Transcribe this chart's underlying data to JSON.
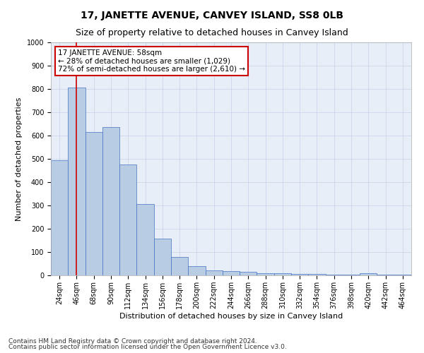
{
  "title": "17, JANETTE AVENUE, CANVEY ISLAND, SS8 0LB",
  "subtitle": "Size of property relative to detached houses in Canvey Island",
  "xlabel": "Distribution of detached houses by size in Canvey Island",
  "ylabel": "Number of detached properties",
  "footnote1": "Contains HM Land Registry data © Crown copyright and database right 2024.",
  "footnote2": "Contains public sector information licensed under the Open Government Licence v3.0.",
  "categories": [
    "24sqm",
    "46sqm",
    "68sqm",
    "90sqm",
    "112sqm",
    "134sqm",
    "156sqm",
    "178sqm",
    "200sqm",
    "222sqm",
    "244sqm",
    "266sqm",
    "288sqm",
    "310sqm",
    "332sqm",
    "354sqm",
    "376sqm",
    "398sqm",
    "420sqm",
    "442sqm",
    "464sqm"
  ],
  "values": [
    495,
    805,
    615,
    635,
    475,
    305,
    158,
    78,
    40,
    22,
    18,
    15,
    10,
    8,
    5,
    5,
    4,
    3,
    8,
    3,
    2
  ],
  "bar_color": "#b8cce4",
  "bar_edge_color": "#4472c4",
  "red_line_index": 1,
  "annotation_line1": "17 JANETTE AVENUE: 58sqm",
  "annotation_line2": "← 28% of detached houses are smaller (1,029)",
  "annotation_line3": "72% of semi-detached houses are larger (2,610) →",
  "annotation_box_color": "#ffffff",
  "annotation_box_edge_color": "#cc0000",
  "ylim": [
    0,
    1000
  ],
  "yticks": [
    0,
    100,
    200,
    300,
    400,
    500,
    600,
    700,
    800,
    900,
    1000
  ],
  "background_color": "#ffffff",
  "ax_background_color": "#e8eef8",
  "grid_color": "#c8d0e8",
  "title_fontsize": 10,
  "subtitle_fontsize": 9,
  "axis_label_fontsize": 8,
  "tick_fontsize": 7,
  "annotation_fontsize": 7.5,
  "footnote_fontsize": 6.5
}
